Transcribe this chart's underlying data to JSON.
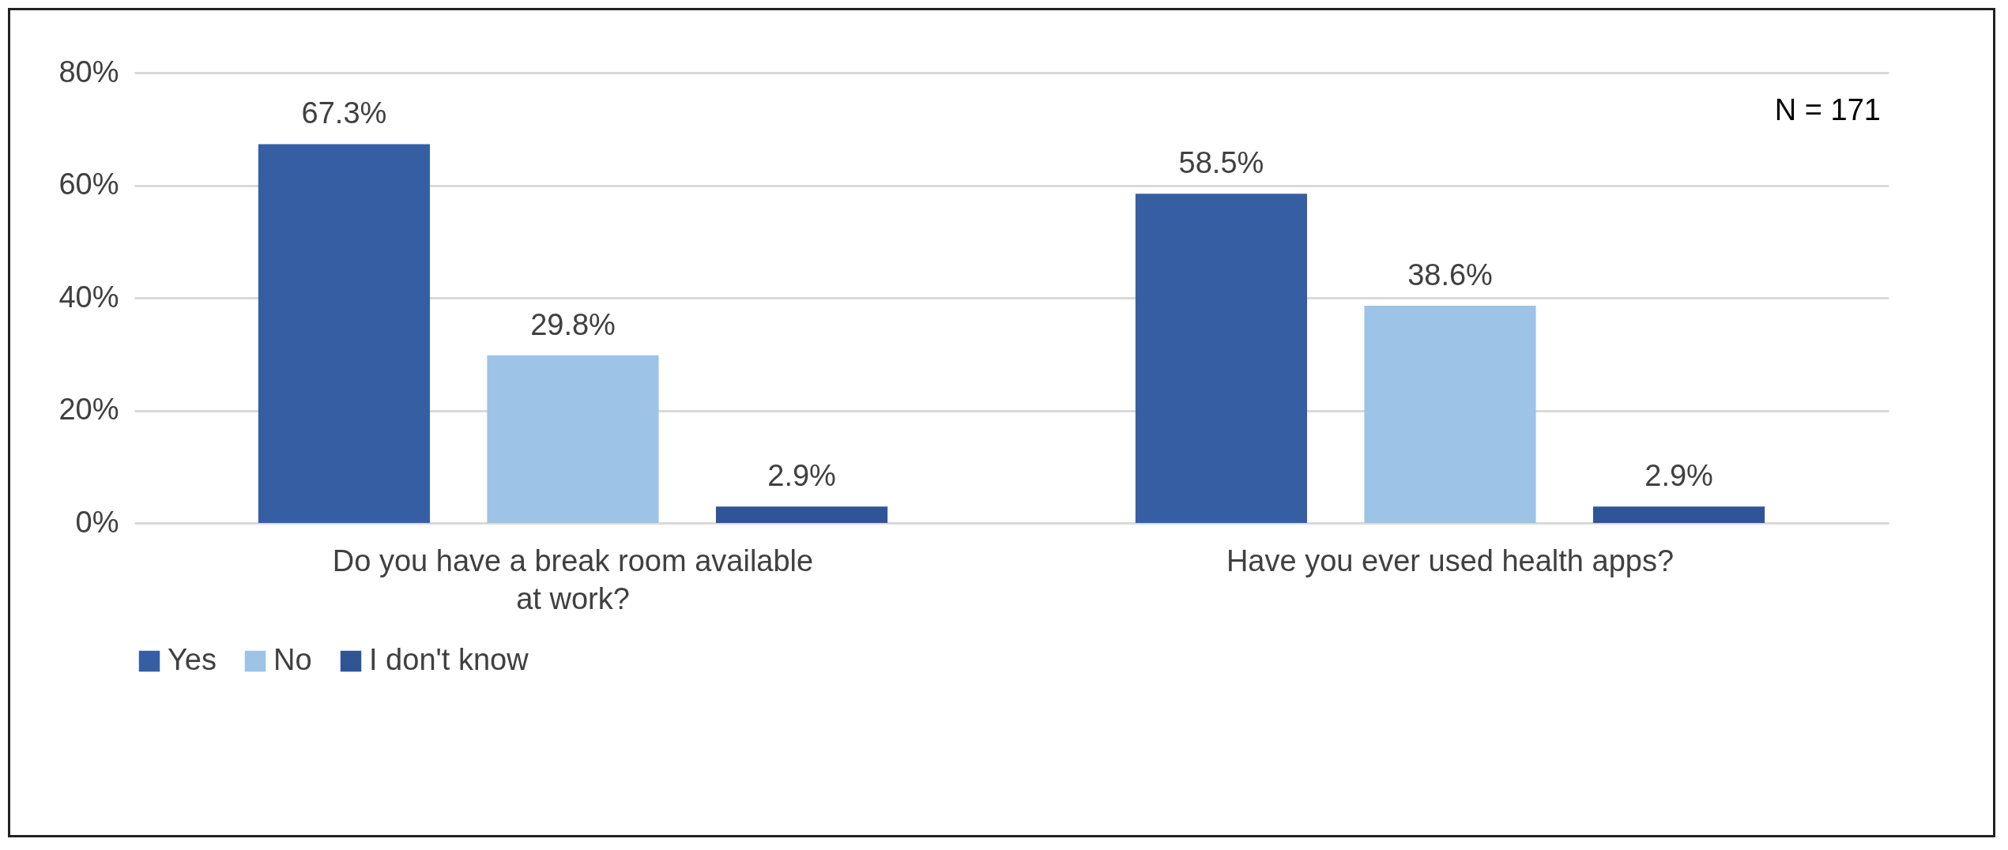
{
  "chart_data": {
    "type": "bar",
    "categories": [
      "Do you have a break room available at work?",
      "Have you ever used health apps?"
    ],
    "series": [
      {
        "name": "Yes",
        "color": "#365fa3",
        "values": [
          67.3,
          58.5
        ],
        "value_labels": [
          "67.3%",
          "58.5%"
        ]
      },
      {
        "name": "No",
        "color": "#9dc3e6",
        "values": [
          29.8,
          38.6
        ],
        "value_labels": [
          "29.8%",
          "38.6%"
        ]
      },
      {
        "name": "I don't know",
        "color": "#2f5597",
        "values": [
          2.9,
          2.9
        ],
        "value_labels": [
          "2.9%",
          "2.9%"
        ]
      }
    ],
    "ylim": [
      0,
      80
    ],
    "yticks": [
      {
        "value": 0,
        "label": "0%"
      },
      {
        "value": 20,
        "label": "20%"
      },
      {
        "value": 40,
        "label": "40%"
      },
      {
        "value": 60,
        "label": "60%"
      },
      {
        "value": 80,
        "label": "80%"
      }
    ],
    "grid": "y",
    "legend": "bottom",
    "annotations": [
      "N = 171"
    ]
  }
}
